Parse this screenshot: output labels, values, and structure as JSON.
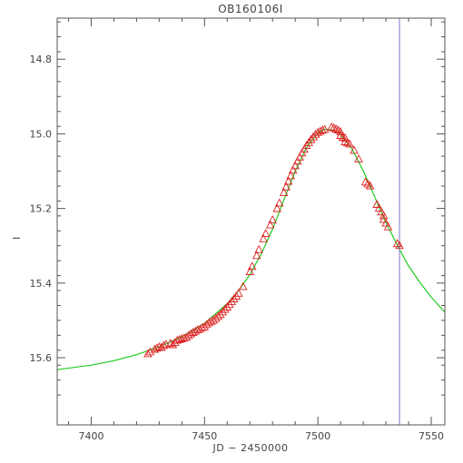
{
  "chart_data": {
    "type": "scatter",
    "title": "OB160106I",
    "xlabel": "JD − 2450000",
    "ylabel": "I",
    "xlim": [
      7385,
      7556
    ],
    "ylim": [
      15.78,
      14.69
    ],
    "y_inverted": true,
    "x_ticks": [
      7400,
      7450,
      7500,
      7550
    ],
    "y_ticks": [
      14.8,
      15.0,
      15.2,
      15.4,
      15.6
    ],
    "x_tick_labels": [
      "7400",
      "7450",
      "7500",
      "7550"
    ],
    "y_tick_labels": [
      "14.8",
      "15.0",
      "15.2",
      "15.4",
      "15.6"
    ],
    "grid": false,
    "vertical_line": {
      "x": 7536,
      "color": "#8f8fd6"
    },
    "colors": {
      "model": "#22cc22",
      "points": "#dd2222",
      "axes": "#555555"
    },
    "model_curve": {
      "name": "",
      "x": [
        7385,
        7400,
        7410,
        7420,
        7430,
        7440,
        7450,
        7460,
        7465,
        7470,
        7475,
        7480,
        7485,
        7490,
        7495,
        7500,
        7503,
        7507,
        7510,
        7515,
        7520,
        7525,
        7530,
        7536,
        7540,
        7545,
        7550,
        7556
      ],
      "y": [
        15.632,
        15.62,
        15.608,
        15.592,
        15.571,
        15.544,
        15.508,
        15.455,
        15.42,
        15.377,
        15.322,
        15.256,
        15.177,
        15.1,
        15.036,
        14.997,
        14.988,
        14.99,
        15.002,
        15.04,
        15.099,
        15.168,
        15.238,
        15.31,
        15.354,
        15.398,
        15.438,
        15.478
      ]
    },
    "series": [
      {
        "name": "",
        "marker": "triangle",
        "x": [
          7425,
          7426,
          7428,
          7429,
          7430,
          7431,
          7432,
          7433,
          7435,
          7436,
          7437,
          7438,
          7439,
          7440,
          7441,
          7442,
          7443,
          7444,
          7445,
          7446,
          7447,
          7448,
          7449,
          7450,
          7451,
          7452,
          7453,
          7454,
          7455,
          7456,
          7457,
          7458,
          7459,
          7460,
          7461,
          7462,
          7463,
          7464,
          7465,
          7467,
          7470,
          7471,
          7473,
          7474,
          7476,
          7477,
          7479,
          7480,
          7482,
          7483,
          7485,
          7486,
          7487,
          7488,
          7489,
          7490,
          7491,
          7492,
          7493,
          7494,
          7495,
          7496,
          7497,
          7498,
          7499,
          7500,
          7501,
          7502,
          7503,
          7506,
          7507,
          7508,
          7509,
          7510,
          7510,
          7511,
          7512,
          7512,
          7513,
          7514,
          7516,
          7518,
          7521,
          7522,
          7523,
          7526,
          7527,
          7528,
          7529,
          7529,
          7530,
          7531,
          7535,
          7536
        ],
        "y": [
          15.59,
          15.585,
          15.578,
          15.575,
          15.572,
          15.573,
          15.568,
          15.565,
          15.562,
          15.566,
          15.56,
          15.554,
          15.552,
          15.55,
          15.548,
          15.546,
          15.541,
          15.537,
          15.533,
          15.53,
          15.526,
          15.524,
          15.52,
          15.518,
          15.512,
          15.507,
          15.503,
          15.5,
          15.495,
          15.49,
          15.485,
          15.478,
          15.471,
          15.465,
          15.458,
          15.45,
          15.443,
          15.436,
          15.428,
          15.41,
          15.37,
          15.356,
          15.327,
          15.311,
          15.282,
          15.268,
          15.245,
          15.231,
          15.201,
          15.186,
          15.158,
          15.143,
          15.128,
          15.113,
          15.098,
          15.086,
          15.074,
          15.063,
          15.052,
          15.042,
          15.032,
          15.024,
          15.016,
          15.009,
          15.002,
          14.997,
          14.994,
          14.991,
          14.989,
          14.983,
          14.985,
          14.988,
          14.991,
          14.995,
          15.005,
          15.01,
          15.012,
          15.022,
          15.025,
          15.028,
          15.045,
          15.068,
          15.13,
          15.135,
          15.14,
          15.19,
          15.2,
          15.21,
          15.22,
          15.23,
          15.24,
          15.25,
          15.295,
          15.3
        ]
      }
    ]
  }
}
